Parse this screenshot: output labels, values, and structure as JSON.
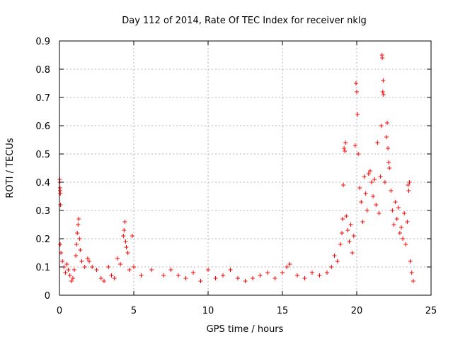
{
  "chart_data": {
    "type": "scatter",
    "title": "Day 112 of 2014, Rate Of TEC Index for receiver nklg",
    "xlabel": "GPS time / hours",
    "ylabel": "ROTI / TECUs",
    "xlim": [
      0,
      25
    ],
    "ylim": [
      0,
      0.9
    ],
    "xticks": [
      0,
      5,
      10,
      15,
      20,
      25
    ],
    "yticks": [
      0,
      0.1,
      0.2,
      0.3,
      0.4,
      0.5,
      0.6,
      0.7,
      0.8,
      0.9
    ],
    "x_tick_labels": [
      "0",
      "5",
      "10",
      "15",
      "20",
      "25"
    ],
    "y_tick_labels": [
      "0",
      "0.1",
      "0.2",
      "0.3",
      "0.4",
      "0.5",
      "0.6",
      "0.7",
      "0.8",
      "0.9"
    ],
    "grid": true,
    "marker": "plus",
    "color": "#ff0000",
    "series": [
      {
        "points": [
          [
            0.02,
            0.41
          ],
          [
            0.03,
            0.4
          ],
          [
            0.04,
            0.38
          ],
          [
            0.05,
            0.37
          ],
          [
            0.06,
            0.36
          ],
          [
            0.07,
            0.32
          ],
          [
            0.05,
            0.18
          ],
          [
            0.1,
            0.15
          ],
          [
            0.2,
            0.12
          ],
          [
            0.3,
            0.1
          ],
          [
            0.4,
            0.08
          ],
          [
            0.5,
            0.11
          ],
          [
            0.6,
            0.09
          ],
          [
            0.7,
            0.07
          ],
          [
            0.8,
            0.05
          ],
          [
            0.9,
            0.06
          ],
          [
            1.0,
            0.09
          ],
          [
            1.1,
            0.14
          ],
          [
            1.15,
            0.18
          ],
          [
            1.2,
            0.22
          ],
          [
            1.25,
            0.25
          ],
          [
            1.3,
            0.27
          ],
          [
            1.35,
            0.2
          ],
          [
            1.4,
            0.16
          ],
          [
            1.5,
            0.12
          ],
          [
            1.7,
            0.1
          ],
          [
            1.9,
            0.13
          ],
          [
            2.0,
            0.12
          ],
          [
            2.2,
            0.1
          ],
          [
            2.5,
            0.09
          ],
          [
            2.8,
            0.06
          ],
          [
            3.0,
            0.05
          ],
          [
            3.3,
            0.1
          ],
          [
            3.5,
            0.07
          ],
          [
            3.7,
            0.06
          ],
          [
            3.9,
            0.13
          ],
          [
            4.1,
            0.11
          ],
          [
            4.3,
            0.21
          ],
          [
            4.35,
            0.23
          ],
          [
            4.4,
            0.26
          ],
          [
            4.45,
            0.19
          ],
          [
            4.5,
            0.17
          ],
          [
            4.6,
            0.15
          ],
          [
            4.9,
            0.21
          ],
          [
            4.7,
            0.09
          ],
          [
            5.0,
            0.1
          ],
          [
            5.5,
            0.07
          ],
          [
            6.2,
            0.09
          ],
          [
            7.0,
            0.07
          ],
          [
            7.5,
            0.09
          ],
          [
            8.0,
            0.07
          ],
          [
            8.5,
            0.06
          ],
          [
            9.0,
            0.08
          ],
          [
            9.5,
            0.05
          ],
          [
            10.0,
            0.09
          ],
          [
            10.5,
            0.06
          ],
          [
            11.0,
            0.07
          ],
          [
            11.5,
            0.09
          ],
          [
            12.0,
            0.06
          ],
          [
            12.5,
            0.05
          ],
          [
            13.0,
            0.06
          ],
          [
            13.5,
            0.07
          ],
          [
            14.0,
            0.08
          ],
          [
            14.5,
            0.06
          ],
          [
            15.0,
            0.08
          ],
          [
            15.3,
            0.1
          ],
          [
            15.5,
            0.11
          ],
          [
            16.0,
            0.07
          ],
          [
            16.5,
            0.06
          ],
          [
            17.0,
            0.08
          ],
          [
            17.5,
            0.07
          ],
          [
            18.0,
            0.08
          ],
          [
            18.3,
            0.1
          ],
          [
            18.5,
            0.14
          ],
          [
            18.7,
            0.12
          ],
          [
            18.9,
            0.18
          ],
          [
            19.0,
            0.22
          ],
          [
            19.05,
            0.27
          ],
          [
            19.1,
            0.39
          ],
          [
            19.15,
            0.52
          ],
          [
            19.2,
            0.51
          ],
          [
            19.25,
            0.54
          ],
          [
            19.3,
            0.28
          ],
          [
            19.4,
            0.23
          ],
          [
            19.5,
            0.19
          ],
          [
            19.6,
            0.25
          ],
          [
            19.7,
            0.15
          ],
          [
            19.8,
            0.21
          ],
          [
            19.9,
            0.53
          ],
          [
            19.95,
            0.75
          ],
          [
            20.0,
            0.72
          ],
          [
            20.05,
            0.64
          ],
          [
            20.1,
            0.5
          ],
          [
            20.2,
            0.38
          ],
          [
            20.3,
            0.33
          ],
          [
            20.4,
            0.26
          ],
          [
            20.5,
            0.42
          ],
          [
            20.6,
            0.36
          ],
          [
            20.7,
            0.3
          ],
          [
            20.8,
            0.43
          ],
          [
            20.9,
            0.44
          ],
          [
            21.0,
            0.4
          ],
          [
            21.1,
            0.35
          ],
          [
            21.2,
            0.41
          ],
          [
            21.3,
            0.32
          ],
          [
            21.4,
            0.54
          ],
          [
            21.5,
            0.29
          ],
          [
            21.6,
            0.42
          ],
          [
            21.65,
            0.6
          ],
          [
            21.7,
            0.85
          ],
          [
            21.72,
            0.84
          ],
          [
            21.75,
            0.72
          ],
          [
            21.78,
            0.76
          ],
          [
            21.8,
            0.71
          ],
          [
            21.9,
            0.4
          ],
          [
            22.0,
            0.56
          ],
          [
            22.05,
            0.61
          ],
          [
            22.1,
            0.52
          ],
          [
            22.15,
            0.47
          ],
          [
            22.2,
            0.45
          ],
          [
            22.3,
            0.37
          ],
          [
            22.4,
            0.3
          ],
          [
            22.5,
            0.25
          ],
          [
            22.6,
            0.33
          ],
          [
            22.7,
            0.27
          ],
          [
            22.8,
            0.31
          ],
          [
            22.9,
            0.22
          ],
          [
            23.0,
            0.24
          ],
          [
            23.1,
            0.2
          ],
          [
            23.2,
            0.29
          ],
          [
            23.3,
            0.18
          ],
          [
            23.4,
            0.26
          ],
          [
            23.45,
            0.39
          ],
          [
            23.5,
            0.37
          ],
          [
            23.55,
            0.4
          ],
          [
            23.6,
            0.12
          ],
          [
            23.7,
            0.08
          ],
          [
            23.8,
            0.05
          ]
        ]
      }
    ]
  }
}
